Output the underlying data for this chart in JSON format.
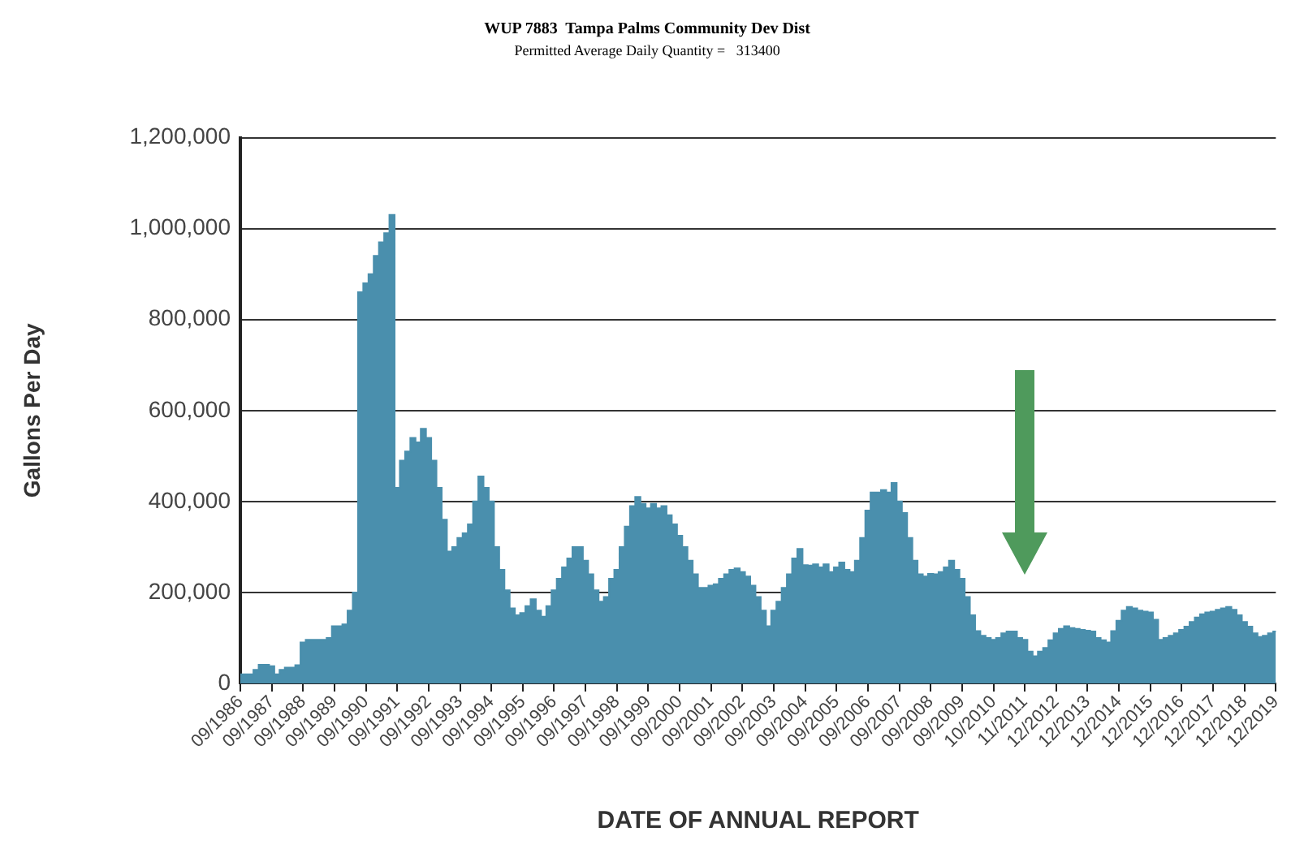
{
  "chart_data": {
    "type": "area",
    "title": "WUP 7883  Tampa Palms Community Dev Dist",
    "subtitle": "Permitted Average Daily Quantity =   313400",
    "xlabel": "DATE OF ANNUAL REPORT",
    "ylabel": "Gallons Per Day",
    "categories": [
      "09/1986",
      null,
      null,
      null,
      null,
      null,
      "09/1987",
      null,
      null,
      null,
      null,
      null,
      "09/1988",
      null,
      null,
      null,
      null,
      null,
      "09/1989",
      null,
      null,
      null,
      null,
      null,
      "09/1990",
      null,
      null,
      null,
      null,
      null,
      "09/1991",
      null,
      null,
      null,
      null,
      null,
      "09/1992",
      null,
      null,
      null,
      null,
      null,
      "09/1993",
      null,
      null,
      null,
      null,
      null,
      "09/1994",
      null,
      null,
      null,
      null,
      null,
      "09/1995",
      null,
      null,
      null,
      null,
      null,
      "09/1996",
      null,
      null,
      null,
      null,
      null,
      "09/1997",
      null,
      null,
      null,
      null,
      null,
      "09/1998",
      null,
      null,
      null,
      null,
      null,
      "09/1999",
      null,
      null,
      null,
      null,
      null,
      "09/2000",
      null,
      null,
      null,
      null,
      null,
      "09/2001",
      null,
      null,
      null,
      null,
      null,
      "09/2002",
      null,
      null,
      null,
      null,
      null,
      "09/2003",
      null,
      null,
      null,
      null,
      null,
      "09/2004",
      null,
      null,
      null,
      null,
      null,
      "09/2005",
      null,
      null,
      null,
      null,
      null,
      "09/2006",
      null,
      null,
      null,
      null,
      null,
      "09/2007",
      null,
      null,
      null,
      null,
      null,
      "09/2008",
      null,
      null,
      null,
      null,
      null,
      "09/2009",
      null,
      null,
      null,
      null,
      null,
      "10/2010",
      null,
      null,
      null,
      null,
      null,
      "11/2011",
      null,
      null,
      null,
      null,
      null,
      "12/2012",
      null,
      null,
      null,
      null,
      null,
      "12/2013",
      null,
      null,
      null,
      null,
      null,
      "12/2014",
      null,
      null,
      null,
      null,
      null,
      "12/2015",
      null,
      null,
      null,
      null,
      null,
      "12/2016",
      null,
      null,
      null,
      null,
      null,
      "12/2017",
      null,
      null,
      null,
      null,
      null,
      "12/2018",
      null,
      null,
      null,
      null,
      null,
      "12/2019"
    ],
    "series": [
      {
        "color": "#4a8fad",
        "values": [
          20000,
          20000,
          20000,
          30000,
          41000,
          41000,
          38000,
          20000,
          30000,
          35000,
          35000,
          40000,
          90000,
          96000,
          96000,
          96000,
          96000,
          100000,
          126000,
          126000,
          130000,
          160000,
          200000,
          860000,
          880000,
          900000,
          940000,
          970000,
          990000,
          1030000,
          430000,
          490000,
          510000,
          540000,
          530000,
          560000,
          540000,
          490000,
          430000,
          360000,
          290000,
          300000,
          320000,
          330000,
          350000,
          400000,
          455000,
          430000,
          400000,
          300000,
          250000,
          205000,
          165000,
          150000,
          155000,
          170000,
          185000,
          160000,
          147000,
          170000,
          205000,
          230000,
          255000,
          275000,
          300000,
          300000,
          270000,
          240000,
          205000,
          180000,
          190000,
          230000,
          250000,
          300000,
          345000,
          390000,
          410000,
          395000,
          385000,
          395000,
          385000,
          390000,
          370000,
          350000,
          325000,
          300000,
          270000,
          240000,
          210000,
          210000,
          215000,
          218000,
          230000,
          240000,
          250000,
          253000,
          245000,
          235000,
          215000,
          190000,
          160000,
          126000,
          160000,
          180000,
          210000,
          240000,
          275000,
          296000,
          260000,
          259000,
          262000,
          255000,
          262000,
          245000,
          255000,
          266000,
          250000,
          245000,
          270000,
          320000,
          380000,
          420000,
          420000,
          425000,
          420000,
          441000,
          400000,
          375000,
          320000,
          270000,
          240000,
          235000,
          241000,
          240000,
          245000,
          255000,
          270000,
          250000,
          230000,
          190000,
          150000,
          115000,
          105000,
          100000,
          96000,
          100000,
          110000,
          114000,
          114000,
          100000,
          96000,
          70000,
          60000,
          70000,
          78000,
          95000,
          110000,
          120000,
          126000,
          122000,
          120000,
          118000,
          116000,
          114000,
          100000,
          95000,
          90000,
          115000,
          138000,
          160000,
          168000,
          165000,
          160000,
          158000,
          156000,
          140000,
          96000,
          100000,
          105000,
          110000,
          118000,
          125000,
          135000,
          145000,
          152000,
          156000,
          158000,
          162000,
          165000,
          168000,
          162000,
          150000,
          135000,
          125000,
          110000,
          102000,
          105000,
          110000,
          114000
        ]
      }
    ],
    "ylim": [
      0,
      1200000
    ],
    "yticks": [
      0,
      {
        "value": 200000,
        "label": "200,000"
      },
      {
        "value": 400000,
        "label": "400,000"
      },
      {
        "value": 600000,
        "label": "600,000"
      },
      {
        "value": 800000,
        "label": "800,000"
      },
      {
        "value": 1000000,
        "label": "1,000,000"
      },
      {
        "value": 1200000,
        "label": "1,200,000"
      }
    ],
    "grid": "y"
  }
}
